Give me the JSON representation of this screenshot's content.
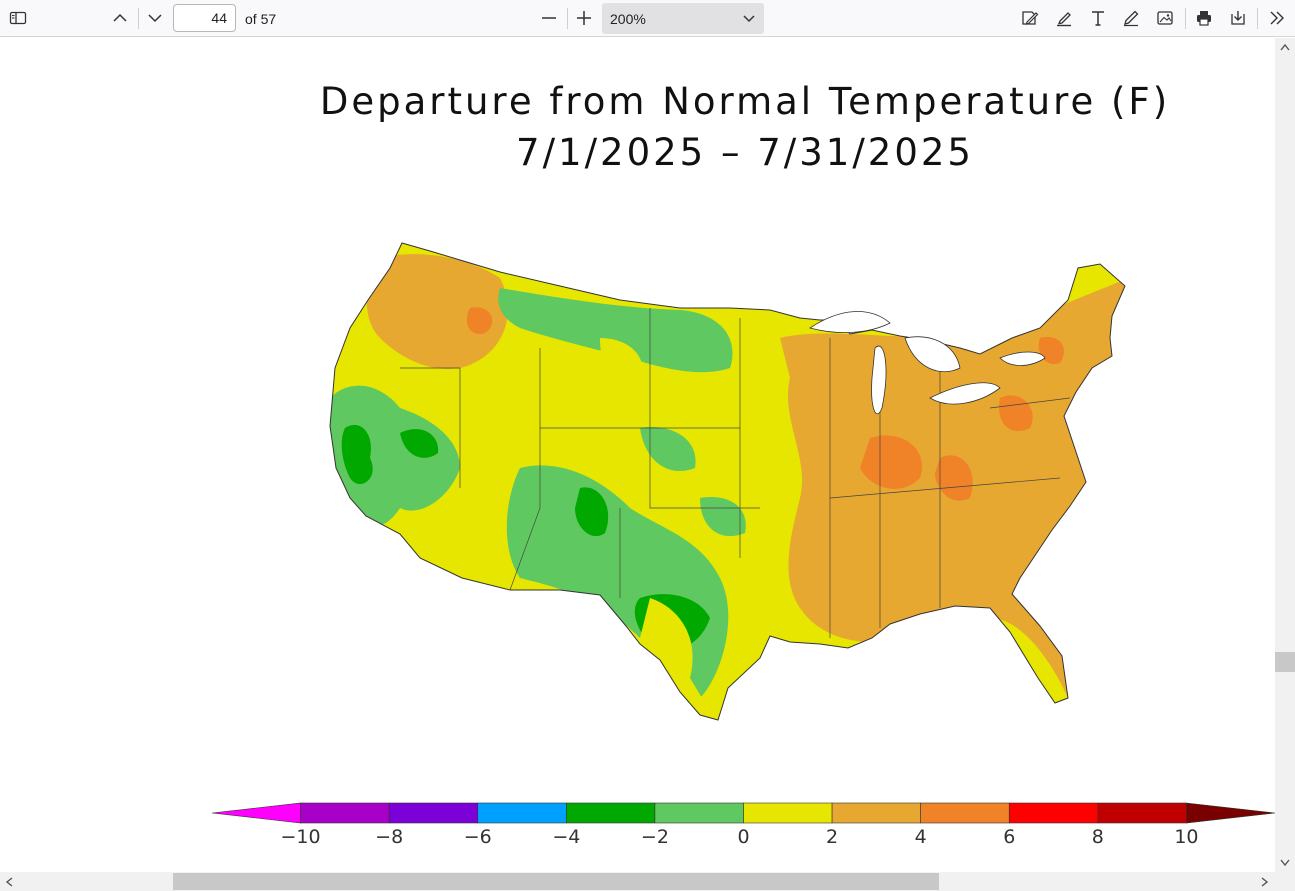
{
  "toolbar": {
    "page_number": "44",
    "page_of": "of 57",
    "zoom": "200%"
  },
  "document": {
    "title_line1": "Departure from Normal Temperature (F)",
    "title_line2": "7/1/2025 – 7/31/2025"
  },
  "legend": {
    "colors": [
      "#ff00ff",
      "#a800c8",
      "#7c00d8",
      "#00a0ff",
      "#00a800",
      "#60c860",
      "#e6e600",
      "#e6a830",
      "#f08228",
      "#ff0000",
      "#c00000",
      "#780000"
    ],
    "labels": [
      "−10",
      "−8",
      "−6",
      "−4",
      "−2",
      "0",
      "2",
      "4",
      "6",
      "8",
      "10"
    ]
  },
  "icons": {
    "sidebar": "sidebar-toggle-icon",
    "prev": "chevron-up-icon",
    "next": "chevron-down-icon",
    "zoom_out": "minus-icon",
    "zoom_in": "plus-icon",
    "draw": "signature-icon",
    "highlight": "highlighter-icon",
    "text": "text-icon",
    "pen": "pen-icon",
    "image": "image-icon",
    "print": "printer-icon",
    "save": "download-icon",
    "more": "double-chevron-right-icon"
  }
}
